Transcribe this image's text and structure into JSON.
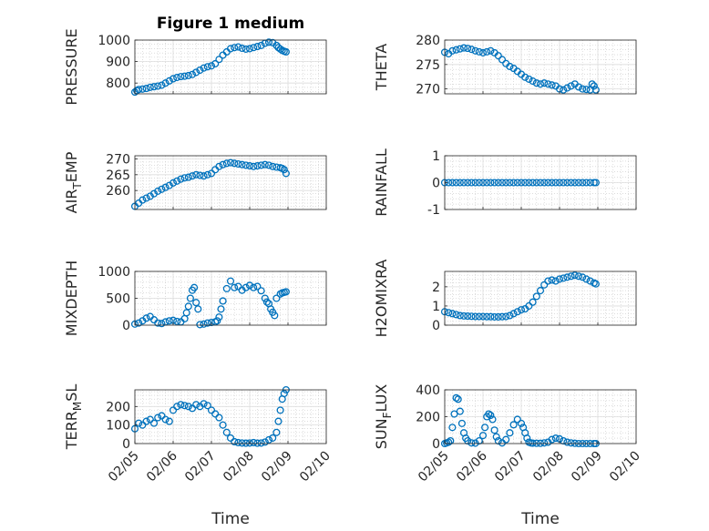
{
  "figure": {
    "title": "Figure 1 medium"
  },
  "colors": {
    "marker": "#0072bd",
    "axis": "#262626",
    "grid": "#c8c8c8"
  },
  "chart_data": [
    {
      "type": "scatter",
      "ylabel": "PRESSURE",
      "ylim": [
        750,
        1000
      ],
      "yticks": [
        800,
        900,
        1000
      ],
      "x": [
        0,
        0.05,
        0.1,
        0.2,
        0.3,
        0.4,
        0.5,
        0.6,
        0.7,
        0.8,
        0.9,
        1.0,
        1.1,
        1.2,
        1.3,
        1.4,
        1.5,
        1.6,
        1.7,
        1.8,
        1.9,
        2.0,
        2.1,
        2.2,
        2.3,
        2.4,
        2.5,
        2.6,
        2.7,
        2.8,
        2.9,
        3.0,
        3.1,
        3.2,
        3.3,
        3.4,
        3.5,
        3.6,
        3.7,
        3.75,
        3.8,
        3.85,
        3.9,
        3.95
      ],
      "y": [
        758,
        765,
        770,
        772,
        775,
        780,
        783,
        786,
        790,
        800,
        810,
        820,
        826,
        830,
        832,
        835,
        840,
        850,
        860,
        870,
        876,
        880,
        890,
        910,
        930,
        945,
        960,
        965,
        968,
        962,
        958,
        960,
        965,
        970,
        975,
        985,
        990,
        988,
        975,
        965,
        958,
        952,
        948,
        945
      ]
    },
    {
      "type": "scatter",
      "ylabel": "THETA",
      "ylim": [
        269,
        280
      ],
      "yticks": [
        270,
        275,
        280
      ],
      "x": [
        0,
        0.1,
        0.2,
        0.3,
        0.4,
        0.5,
        0.6,
        0.7,
        0.8,
        0.9,
        1.0,
        1.1,
        1.2,
        1.3,
        1.4,
        1.5,
        1.6,
        1.7,
        1.8,
        1.9,
        2.0,
        2.1,
        2.2,
        2.3,
        2.4,
        2.5,
        2.6,
        2.7,
        2.8,
        2.9,
        3.0,
        3.1,
        3.2,
        3.3,
        3.4,
        3.5,
        3.6,
        3.7,
        3.8,
        3.85,
        3.9,
        3.95
      ],
      "y": [
        277.5,
        277.2,
        277.8,
        278.0,
        278.2,
        278.4,
        278.3,
        278.1,
        277.8,
        277.6,
        277.4,
        277.6,
        277.8,
        277.4,
        276.8,
        276.0,
        275.2,
        274.6,
        274.2,
        273.6,
        273.0,
        272.4,
        272.0,
        271.6,
        271.2,
        271.0,
        271.2,
        271.0,
        270.8,
        270.6,
        270.0,
        269.8,
        270.2,
        270.6,
        271.0,
        270.4,
        270.0,
        269.9,
        269.8,
        271.0,
        270.6,
        269.8
      ]
    },
    {
      "type": "scatter",
      "ylabel": "AIR_TEMP",
      "ylim": [
        254,
        271
      ],
      "yticks": [
        260,
        265,
        270
      ],
      "x": [
        0,
        0.1,
        0.2,
        0.3,
        0.4,
        0.5,
        0.6,
        0.7,
        0.8,
        0.9,
        1.0,
        1.1,
        1.2,
        1.3,
        1.4,
        1.5,
        1.6,
        1.7,
        1.8,
        1.9,
        2.0,
        2.1,
        2.2,
        2.3,
        2.4,
        2.5,
        2.6,
        2.7,
        2.8,
        2.9,
        3.0,
        3.1,
        3.2,
        3.3,
        3.4,
        3.5,
        3.6,
        3.7,
        3.8,
        3.85,
        3.9,
        3.95
      ],
      "y": [
        255,
        256,
        257,
        257.6,
        258.2,
        259,
        259.8,
        260.4,
        261,
        261.6,
        262.4,
        263,
        263.6,
        264,
        264.2,
        264.6,
        265,
        264.8,
        264.6,
        265,
        265.4,
        266.6,
        267.6,
        268.2,
        268.6,
        268.8,
        268.6,
        268.4,
        268.2,
        268,
        267.8,
        267.6,
        267.8,
        268,
        268.2,
        268,
        267.6,
        267.4,
        267.2,
        267.0,
        266.6,
        265.4
      ]
    },
    {
      "type": "scatter",
      "ylabel": "RAINFALL",
      "ylim": [
        -1,
        1
      ],
      "yticks": [
        -1,
        0,
        1
      ],
      "x": [
        0,
        0.1,
        0.2,
        0.3,
        0.4,
        0.5,
        0.6,
        0.7,
        0.8,
        0.9,
        1.0,
        1.1,
        1.2,
        1.3,
        1.4,
        1.5,
        1.6,
        1.7,
        1.8,
        1.9,
        2.0,
        2.1,
        2.2,
        2.3,
        2.4,
        2.5,
        2.6,
        2.7,
        2.8,
        2.9,
        3.0,
        3.1,
        3.2,
        3.3,
        3.4,
        3.5,
        3.6,
        3.7,
        3.8,
        3.9,
        3.95
      ],
      "y": [
        0,
        0,
        0,
        0,
        0,
        0,
        0,
        0,
        0,
        0,
        0,
        0,
        0,
        0,
        0,
        0,
        0,
        0,
        0,
        0,
        0,
        0,
        0,
        0,
        0,
        0,
        0,
        0,
        0,
        0,
        0,
        0,
        0,
        0,
        0,
        0,
        0,
        0,
        0,
        0,
        0
      ]
    },
    {
      "type": "scatter",
      "ylabel": "MIXDEPTH",
      "ylim": [
        0,
        1000
      ],
      "yticks": [
        0,
        500,
        1000
      ],
      "x": [
        0,
        0.1,
        0.2,
        0.3,
        0.4,
        0.5,
        0.6,
        0.7,
        0.8,
        0.9,
        1.0,
        1.1,
        1.2,
        1.3,
        1.35,
        1.4,
        1.45,
        1.5,
        1.55,
        1.6,
        1.65,
        1.7,
        1.8,
        1.9,
        2.0,
        2.1,
        2.15,
        2.2,
        2.25,
        2.3,
        2.4,
        2.5,
        2.6,
        2.7,
        2.8,
        2.9,
        3.0,
        3.1,
        3.2,
        3.3,
        3.4,
        3.45,
        3.5,
        3.55,
        3.6,
        3.65,
        3.7,
        3.8,
        3.85,
        3.9,
        3.95
      ],
      "y": [
        20,
        40,
        80,
        130,
        160,
        100,
        40,
        30,
        60,
        80,
        90,
        70,
        60,
        120,
        230,
        350,
        500,
        650,
        700,
        420,
        300,
        10,
        20,
        40,
        50,
        60,
        80,
        150,
        300,
        450,
        680,
        820,
        700,
        720,
        650,
        700,
        740,
        700,
        720,
        640,
        500,
        430,
        400,
        300,
        240,
        180,
        500,
        580,
        600,
        610,
        620
      ]
    },
    {
      "type": "scatter",
      "ylabel": "H2OMIXRA",
      "ylim": [
        0,
        2.8
      ],
      "yticks": [
        0,
        1,
        2
      ],
      "x": [
        0,
        0.1,
        0.2,
        0.3,
        0.4,
        0.5,
        0.6,
        0.7,
        0.8,
        0.9,
        1.0,
        1.1,
        1.2,
        1.3,
        1.4,
        1.5,
        1.6,
        1.7,
        1.8,
        1.9,
        2.0,
        2.1,
        2.2,
        2.3,
        2.4,
        2.5,
        2.6,
        2.7,
        2.8,
        2.9,
        3.0,
        3.1,
        3.2,
        3.3,
        3.4,
        3.5,
        3.6,
        3.7,
        3.8,
        3.9,
        3.95
      ],
      "y": [
        0.7,
        0.65,
        0.6,
        0.55,
        0.5,
        0.48,
        0.47,
        0.46,
        0.45,
        0.45,
        0.45,
        0.44,
        0.44,
        0.43,
        0.43,
        0.44,
        0.45,
        0.5,
        0.6,
        0.7,
        0.8,
        0.85,
        1.0,
        1.2,
        1.5,
        1.8,
        2.1,
        2.3,
        2.35,
        2.3,
        2.4,
        2.45,
        2.5,
        2.55,
        2.6,
        2.55,
        2.5,
        2.4,
        2.3,
        2.2,
        2.15
      ]
    },
    {
      "type": "scatter",
      "ylabel": "TERR_MSL",
      "ylim": [
        0,
        290
      ],
      "yticks": [
        0,
        100,
        200
      ],
      "x": [
        0,
        0.1,
        0.2,
        0.3,
        0.4,
        0.5,
        0.6,
        0.7,
        0.8,
        0.9,
        1.0,
        1.1,
        1.2,
        1.3,
        1.4,
        1.5,
        1.6,
        1.7,
        1.8,
        1.9,
        2.0,
        2.1,
        2.2,
        2.3,
        2.4,
        2.5,
        2.6,
        2.7,
        2.8,
        2.9,
        3.0,
        3.1,
        3.2,
        3.3,
        3.4,
        3.5,
        3.6,
        3.7,
        3.75,
        3.8,
        3.85,
        3.9,
        3.95
      ],
      "y": [
        80,
        110,
        100,
        120,
        130,
        110,
        140,
        150,
        130,
        120,
        180,
        200,
        210,
        205,
        200,
        190,
        210,
        200,
        215,
        205,
        180,
        160,
        140,
        100,
        60,
        30,
        10,
        5,
        3,
        2,
        3,
        5,
        2,
        3,
        8,
        20,
        30,
        60,
        120,
        180,
        240,
        270,
        290
      ]
    },
    {
      "type": "scatter",
      "ylabel": "SUN_FLUX",
      "ylim": [
        0,
        400
      ],
      "yticks": [
        0,
        200,
        400
      ],
      "x": [
        0,
        0.05,
        0.1,
        0.15,
        0.2,
        0.25,
        0.3,
        0.35,
        0.4,
        0.45,
        0.5,
        0.55,
        0.6,
        0.7,
        0.8,
        0.9,
        1.0,
        1.05,
        1.1,
        1.15,
        1.2,
        1.25,
        1.3,
        1.35,
        1.4,
        1.5,
        1.6,
        1.7,
        1.8,
        1.9,
        2.0,
        2.05,
        2.1,
        2.15,
        2.2,
        2.25,
        2.3,
        2.4,
        2.5,
        2.6,
        2.7,
        2.8,
        2.9,
        3.0,
        3.1,
        3.2,
        3.3,
        3.4,
        3.5,
        3.6,
        3.7,
        3.8,
        3.9,
        3.95
      ],
      "y": [
        0,
        5,
        10,
        20,
        120,
        220,
        340,
        330,
        240,
        150,
        80,
        40,
        20,
        5,
        3,
        20,
        60,
        120,
        200,
        220,
        210,
        180,
        100,
        50,
        20,
        5,
        30,
        80,
        140,
        180,
        150,
        120,
        80,
        40,
        10,
        5,
        3,
        2,
        2,
        5,
        10,
        30,
        40,
        35,
        20,
        10,
        5,
        2,
        0,
        0,
        0,
        0,
        0,
        0
      ]
    }
  ],
  "xaxis": {
    "xlabel": "Time",
    "xlim": [
      0,
      5
    ],
    "ticks": [
      0,
      1,
      2,
      3,
      4,
      5
    ],
    "tick_labels": [
      "02/05",
      "02/06",
      "02/07",
      "02/08",
      "02/09",
      "02/10"
    ]
  }
}
